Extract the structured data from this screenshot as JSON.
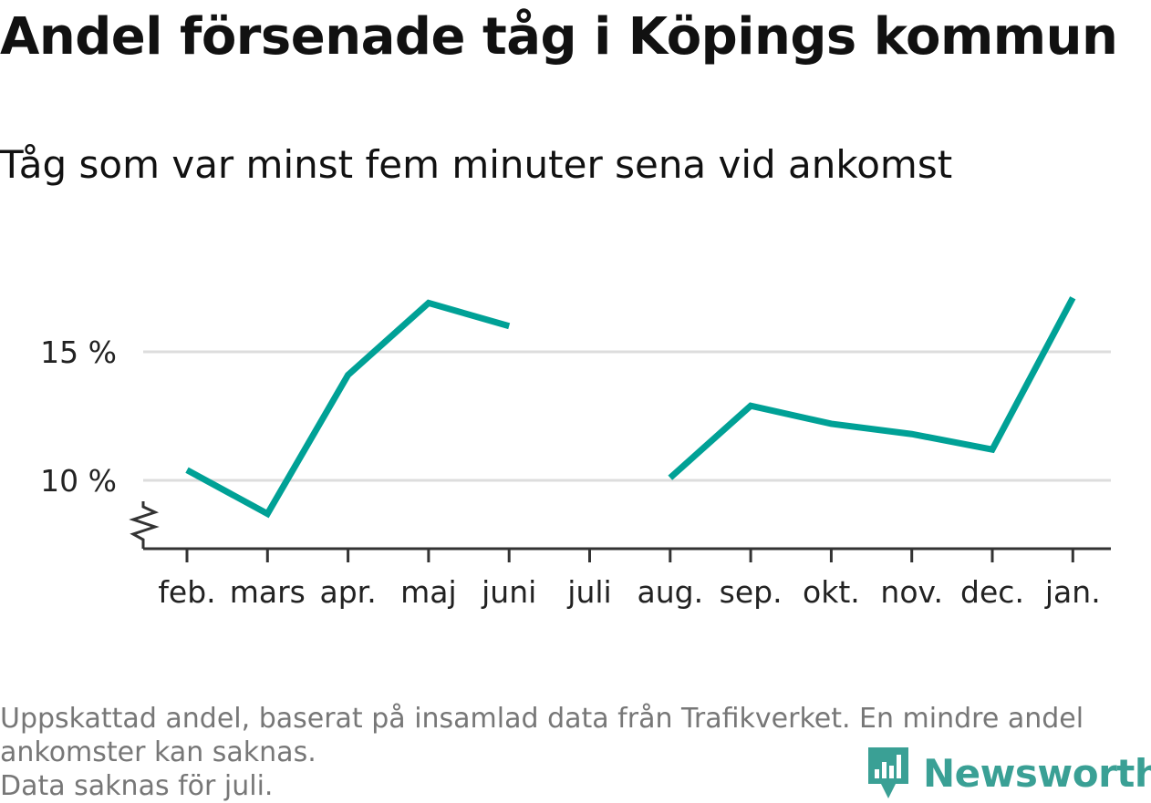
{
  "title": "Andel försenade tåg i Köpings kommun",
  "subtitle": "Tåg som var minst fem minuter sena vid ankomst",
  "caption": {
    "line1": "Uppskattad andel, baserat på insamlad data från Trafikverket. En mindre andel",
    "line2": "ankomster kan saknas.",
    "line3": "Data saknas för juli."
  },
  "logo": {
    "text": "Newsworthy",
    "icon": "bar-chart-speech-bubble-icon",
    "color": "#3aa095"
  },
  "chart_data": {
    "type": "line",
    "categories": [
      "feb.",
      "mars",
      "apr.",
      "maj",
      "juni",
      "juli",
      "aug.",
      "sep.",
      "okt.",
      "nov.",
      "dec.",
      "jan."
    ],
    "series": [
      {
        "values": [
          10.4,
          8.7,
          14.1,
          16.9,
          16.0,
          null,
          10.1,
          12.9,
          12.2,
          11.8,
          11.2,
          17.1
        ],
        "color": "#00a196"
      }
    ],
    "yticks": [
      10,
      15
    ],
    "ytick_labels": [
      "10 %",
      "15 %"
    ],
    "ylim": [
      7.4,
      18.5
    ],
    "y_axis_break": true,
    "grid": true
  }
}
